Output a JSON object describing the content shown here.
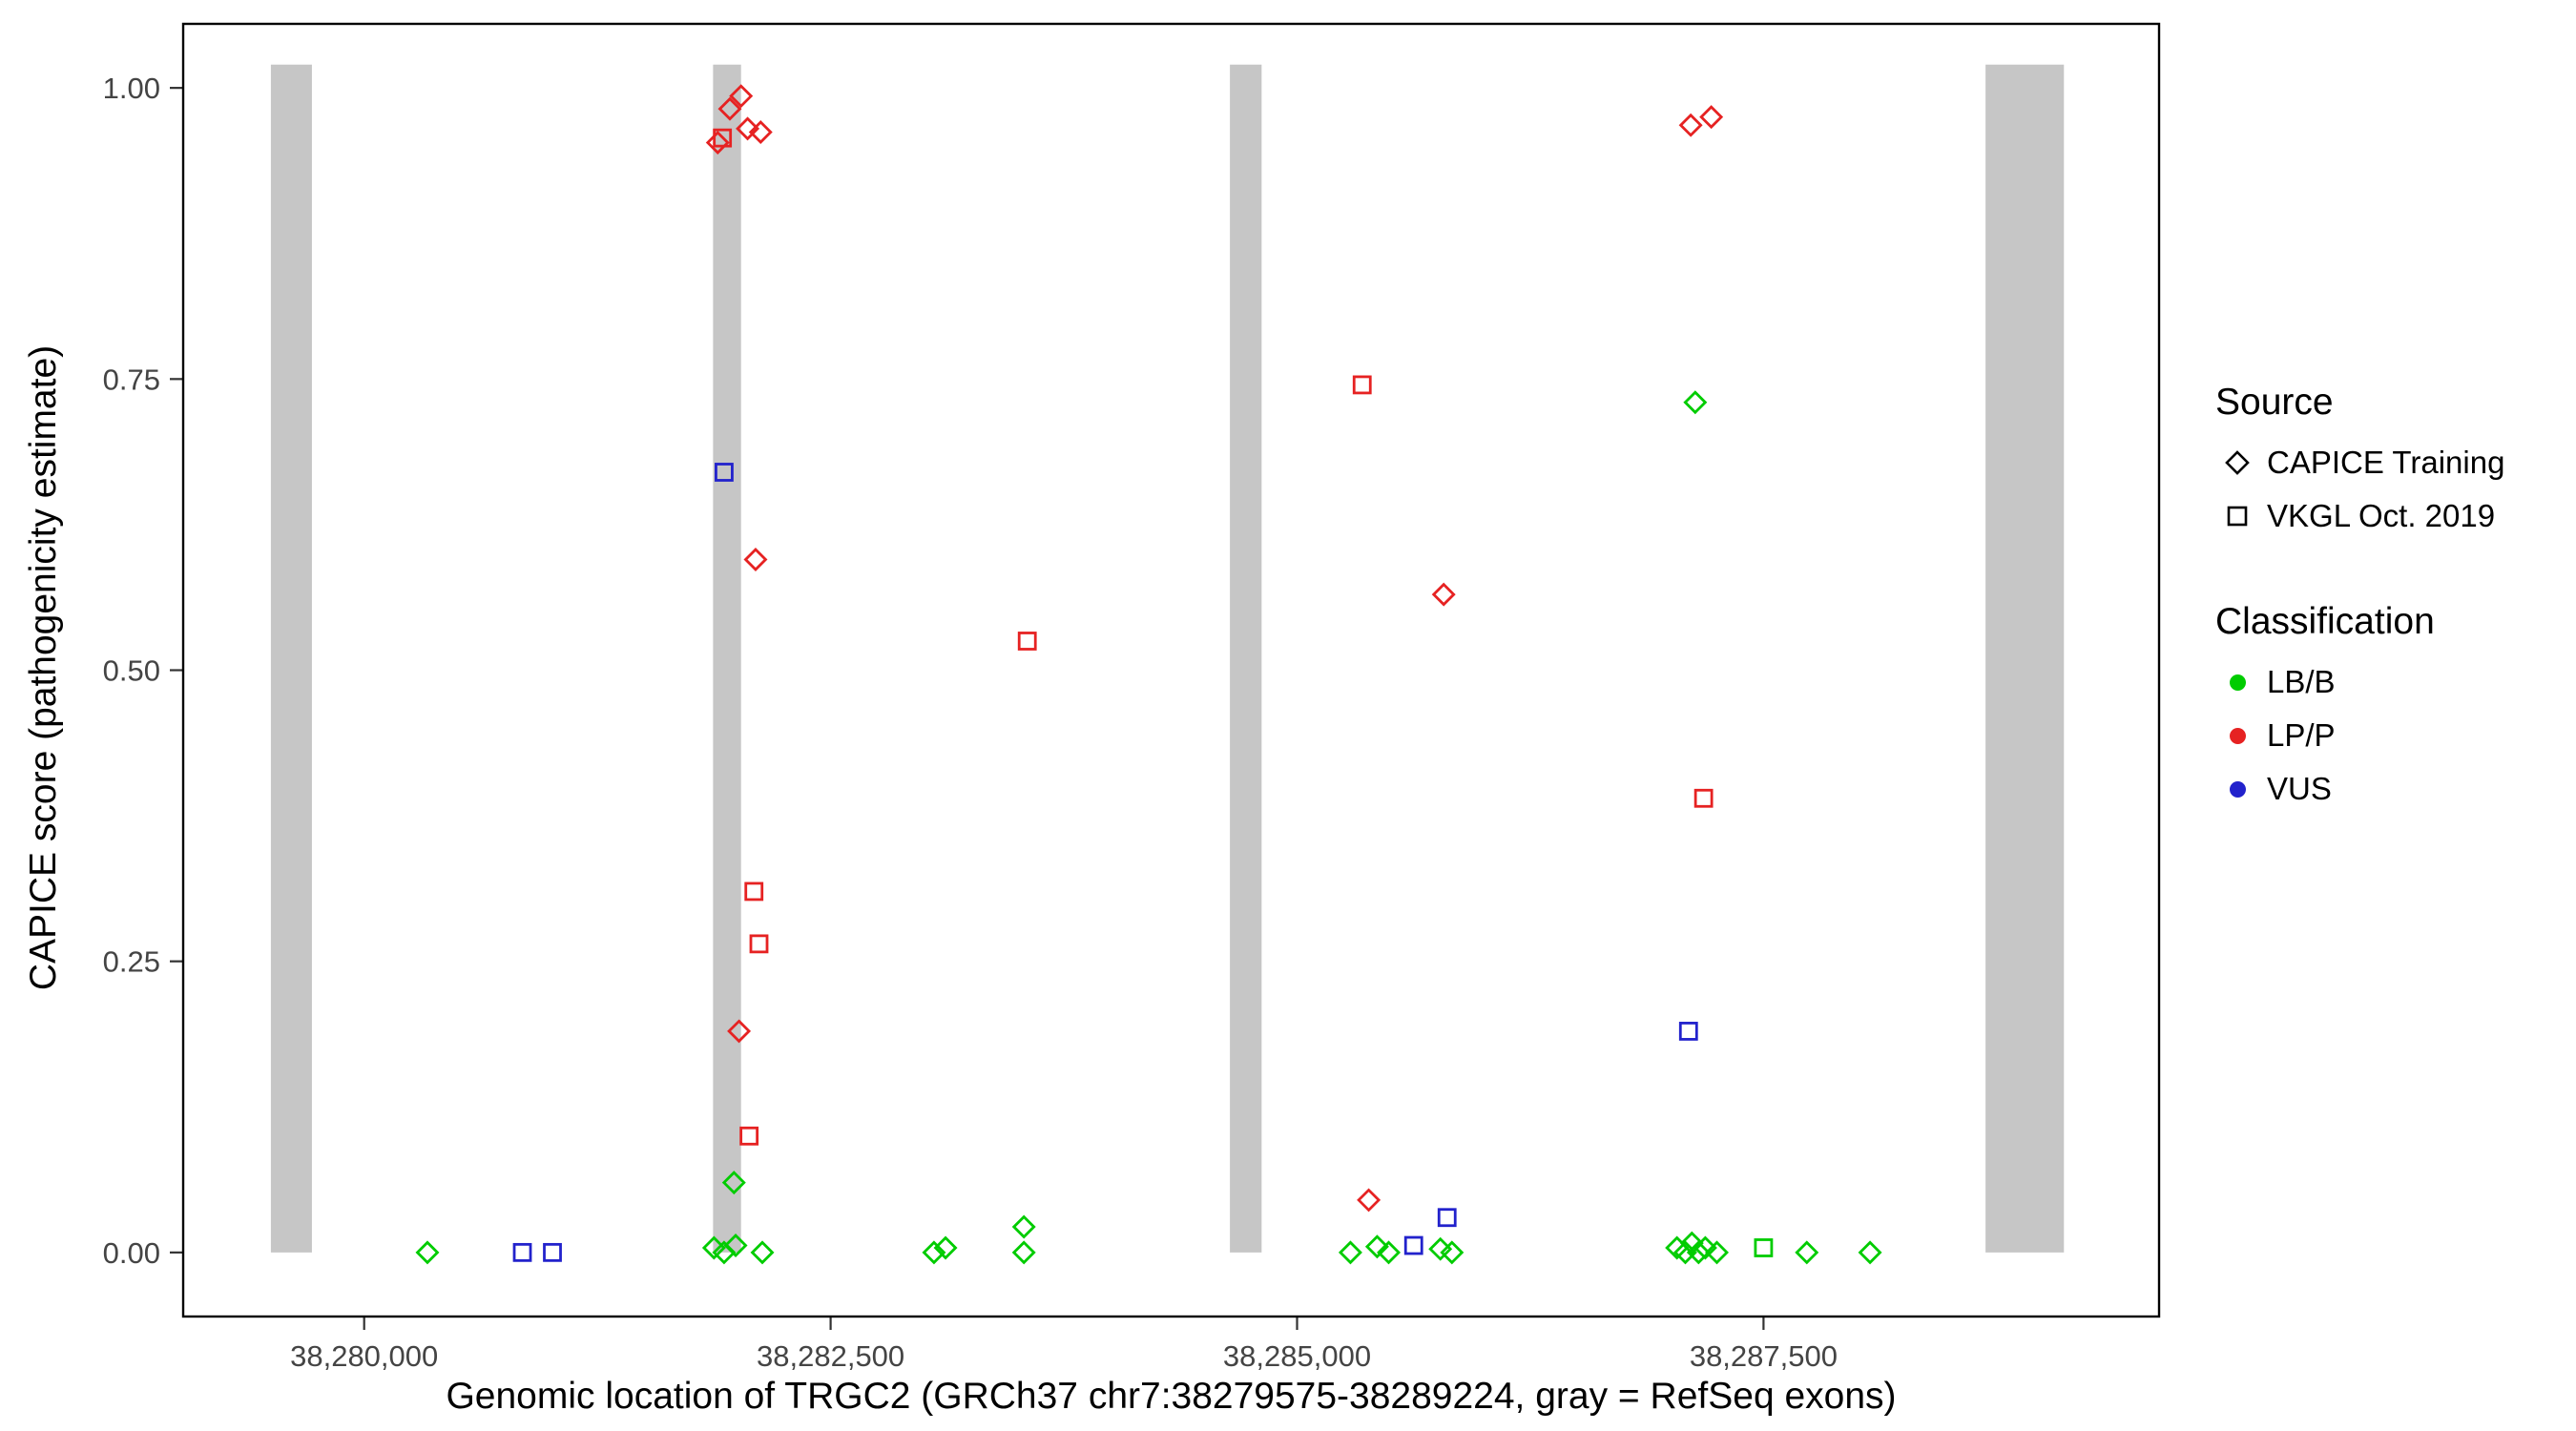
{
  "chart_data": {
    "type": "scatter",
    "title": "",
    "xlabel": "Genomic location of TRGC2 (GRCh37 chr7:38279575-38289224, gray = RefSeq exons)",
    "ylabel": "CAPICE score (pathogenicity estimate)",
    "xlim": [
      38279030,
      38289620
    ],
    "ylim": [
      -0.055,
      1.055
    ],
    "grid": "off",
    "x_ticks": [
      {
        "value": 38280000,
        "label": "38,280,000"
      },
      {
        "value": 38282500,
        "label": "38,282,500"
      },
      {
        "value": 38285000,
        "label": "38,285,000"
      },
      {
        "value": 38287500,
        "label": "38,287,500"
      }
    ],
    "y_ticks": [
      {
        "value": 0.0,
        "label": "0.00"
      },
      {
        "value": 0.25,
        "label": "0.25"
      },
      {
        "value": 0.5,
        "label": "0.50"
      },
      {
        "value": 0.75,
        "label": "0.75"
      },
      {
        "value": 1.0,
        "label": "1.00"
      }
    ],
    "exon_color": "#C6C6C6",
    "exon_ymax": 1.02,
    "exons": [
      {
        "start": 38279500,
        "end": 38279720
      },
      {
        "start": 38281870,
        "end": 38282020
      },
      {
        "start": 38284640,
        "end": 38284810
      },
      {
        "start": 38288690,
        "end": 38289110
      }
    ],
    "colors": {
      "LB/B": "#00CC00",
      "LP/P": "#E62222",
      "VUS": "#2222CC"
    },
    "series": [
      {
        "source": "CAPICE Training",
        "shape": "diamond",
        "classification": "LP/P",
        "points": [
          [
            38282020,
            0.993
          ],
          [
            38281960,
            0.982
          ],
          [
            38282055,
            0.965
          ],
          [
            38282125,
            0.962
          ],
          [
            38281895,
            0.953
          ],
          [
            38287110,
            0.968
          ],
          [
            38287220,
            0.975
          ],
          [
            38282098,
            0.595
          ],
          [
            38282009,
            0.19
          ],
          [
            38285786,
            0.565
          ],
          [
            38285384,
            0.045
          ]
        ]
      },
      {
        "source": "CAPICE Training",
        "shape": "diamond",
        "classification": "LB/B",
        "points": [
          [
            38287134,
            0.73
          ],
          [
            38281982,
            0.06
          ],
          [
            38283536,
            0.022
          ],
          [
            38280339,
            0.0
          ],
          [
            38281875,
            0.004
          ],
          [
            38281929,
            0.0
          ],
          [
            38281991,
            0.006
          ],
          [
            38282134,
            0.0
          ],
          [
            38283054,
            0.0
          ],
          [
            38283116,
            0.004
          ],
          [
            38283536,
            0.0
          ],
          [
            38285286,
            0.0
          ],
          [
            38285429,
            0.005
          ],
          [
            38285491,
            0.0
          ],
          [
            38285768,
            0.003
          ],
          [
            38285830,
            0.0
          ],
          [
            38287036,
            0.004
          ],
          [
            38287081,
            0.0
          ],
          [
            38287116,
            0.008
          ],
          [
            38287152,
            0.0
          ],
          [
            38287188,
            0.004
          ],
          [
            38287250,
            0.0
          ],
          [
            38287732,
            0.0
          ],
          [
            38288071,
            0.0
          ]
        ]
      },
      {
        "source": "VKGL Oct. 2019",
        "shape": "square",
        "classification": "LP/P",
        "points": [
          [
            38281920,
            0.957
          ],
          [
            38285349,
            0.745
          ],
          [
            38283554,
            0.525
          ],
          [
            38282089,
            0.31
          ],
          [
            38282116,
            0.265
          ],
          [
            38282063,
            0.1
          ],
          [
            38287179,
            0.39
          ]
        ]
      },
      {
        "source": "VKGL Oct. 2019",
        "shape": "square",
        "classification": "VUS",
        "points": [
          [
            38281929,
            0.67
          ],
          [
            38285804,
            0.03
          ],
          [
            38287098,
            0.19
          ],
          [
            38280848,
            0.0
          ],
          [
            38281009,
            0.0
          ],
          [
            38285625,
            0.006
          ]
        ]
      },
      {
        "source": "VKGL Oct. 2019",
        "shape": "square",
        "classification": "LB/B",
        "points": [
          [
            38287500,
            0.004
          ]
        ]
      }
    ]
  },
  "legend": {
    "source_title": "Source",
    "source_items": [
      {
        "label": "CAPICE Training",
        "shape": "diamond"
      },
      {
        "label": "VKGL Oct. 2019",
        "shape": "square"
      }
    ],
    "classification_title": "Classification",
    "classification_items": [
      {
        "label": "LB/B",
        "color": "#00CC00"
      },
      {
        "label": "LP/P",
        "color": "#E62222"
      },
      {
        "label": "VUS",
        "color": "#2222CC"
      }
    ]
  }
}
